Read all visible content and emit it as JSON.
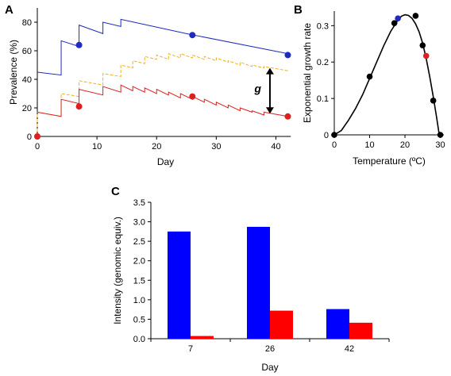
{
  "panels": {
    "a": "A",
    "b": "B",
    "c": "C"
  },
  "colors": {
    "blue": "#1f2bbf",
    "red": "#e02020",
    "orange": "#f0b020",
    "black": "#000000",
    "bar_blue": "#0000ff",
    "bar_red": "#ff0000"
  },
  "chart_data": [
    {
      "id": "A",
      "type": "line",
      "xlabel": "Day",
      "ylabel": "Prevalence (%)",
      "xlim": [
        0,
        43
      ],
      "ylim": [
        0,
        90
      ],
      "xticks": [
        0,
        10,
        20,
        30,
        40
      ],
      "yticks": [
        0,
        20,
        40,
        60,
        80
      ],
      "annotation": "g",
      "annotation_arrow": {
        "x": 39,
        "y_from": 16,
        "y_to": 48
      },
      "series": [
        {
          "color": "blue",
          "style": "solid",
          "points": [
            [
              0,
              45
            ],
            [
              4,
              43
            ],
            [
              4,
              67
            ],
            [
              7,
              63
            ],
            [
              7,
              78
            ],
            [
              11,
              72
            ],
            [
              11,
              80
            ],
            [
              14,
              77
            ],
            [
              14,
              82
            ],
            [
              25,
              72
            ],
            [
              42,
              58
            ]
          ]
        },
        {
          "color": "orange",
          "style": "dashed",
          "points": [
            [
              0,
              17
            ],
            [
              4,
              14
            ],
            [
              4,
              30
            ],
            [
              7,
              28
            ],
            [
              7,
              39
            ],
            [
              11,
              36
            ],
            [
              11,
              44
            ],
            [
              14,
              42
            ],
            [
              14,
              50
            ],
            [
              16,
              48
            ],
            [
              16,
              53
            ],
            [
              18,
              51
            ],
            [
              18,
              56
            ],
            [
              20,
              54
            ],
            [
              20,
              57
            ],
            [
              22,
              54
            ],
            [
              22,
              58
            ],
            [
              24,
              55
            ],
            [
              24,
              58
            ],
            [
              26,
              55
            ],
            [
              26,
              57
            ],
            [
              28,
              54
            ],
            [
              28,
              56
            ],
            [
              30,
              53
            ],
            [
              30,
              55
            ],
            [
              32,
              52
            ],
            [
              32,
              53
            ],
            [
              34,
              50
            ],
            [
              34,
              52
            ],
            [
              36,
              49
            ],
            [
              36,
              50
            ],
            [
              38,
              48
            ],
            [
              38,
              49
            ],
            [
              42,
              46
            ]
          ]
        },
        {
          "color": "red",
          "style": "solid",
          "points": [
            [
              0,
              17
            ],
            [
              4,
              14
            ],
            [
              4,
              26
            ],
            [
              7,
              23
            ],
            [
              7,
              33
            ],
            [
              11,
              29
            ],
            [
              11,
              35
            ],
            [
              14,
              31
            ],
            [
              14,
              36
            ],
            [
              16,
              32
            ],
            [
              16,
              35
            ],
            [
              18,
              31
            ],
            [
              18,
              34
            ],
            [
              20,
              30
            ],
            [
              20,
              33
            ],
            [
              22,
              29
            ],
            [
              22,
              31
            ],
            [
              24,
              27
            ],
            [
              24,
              30
            ],
            [
              26,
              26
            ],
            [
              26,
              28
            ],
            [
              28,
              24
            ],
            [
              28,
              26
            ],
            [
              30,
              22
            ],
            [
              30,
              24
            ],
            [
              32,
              20
            ],
            [
              32,
              22
            ],
            [
              34,
              18
            ],
            [
              34,
              20
            ],
            [
              36,
              17
            ],
            [
              36,
              18
            ],
            [
              38,
              15
            ],
            [
              38,
              17
            ],
            [
              42,
              14
            ]
          ]
        },
        {
          "color": "orange",
          "style": "dashed",
          "points": [
            [
              0,
              0
            ],
            [
              0,
              17
            ]
          ]
        }
      ],
      "markers": [
        {
          "x": 7,
          "y": 64,
          "color": "blue"
        },
        {
          "x": 26,
          "y": 71,
          "color": "blue"
        },
        {
          "x": 42,
          "y": 57,
          "color": "blue"
        },
        {
          "x": 0,
          "y": 0,
          "color": "red"
        },
        {
          "x": 7,
          "y": 21,
          "color": "red"
        },
        {
          "x": 26,
          "y": 28,
          "color": "red"
        },
        {
          "x": 42,
          "y": 14,
          "color": "red"
        }
      ]
    },
    {
      "id": "B",
      "type": "scatter",
      "xlabel": "Temperature (ºC)",
      "ylabel": "Exponential growth rate",
      "xlim": [
        0,
        31
      ],
      "ylim": [
        0,
        0.34
      ],
      "xticks": [
        0,
        10,
        20,
        30
      ],
      "yticks": [
        0,
        0.1,
        0.2,
        0.3
      ],
      "ytick_labels": [
        "0",
        "0.1",
        "0.2",
        "0.3"
      ],
      "curve": [
        [
          0,
          0
        ],
        [
          2,
          0.012
        ],
        [
          4,
          0.04
        ],
        [
          6,
          0.072
        ],
        [
          8,
          0.11
        ],
        [
          10,
          0.155
        ],
        [
          12,
          0.2
        ],
        [
          14,
          0.245
        ],
        [
          16,
          0.285
        ],
        [
          18,
          0.315
        ],
        [
          19,
          0.326
        ],
        [
          20,
          0.33
        ],
        [
          21,
          0.328
        ],
        [
          22,
          0.32
        ],
        [
          23,
          0.305
        ],
        [
          24,
          0.283
        ],
        [
          25,
          0.252
        ],
        [
          26,
          0.21
        ],
        [
          27,
          0.16
        ],
        [
          28,
          0.105
        ],
        [
          29,
          0.045
        ],
        [
          29.7,
          0
        ]
      ],
      "points": [
        {
          "x": 0,
          "y": 0,
          "color": "black"
        },
        {
          "x": 10,
          "y": 0.16,
          "color": "black"
        },
        {
          "x": 17,
          "y": 0.307,
          "color": "black"
        },
        {
          "x": 18,
          "y": 0.32,
          "color": "blue"
        },
        {
          "x": 23,
          "y": 0.327,
          "color": "black"
        },
        {
          "x": 25,
          "y": 0.246,
          "color": "black"
        },
        {
          "x": 26,
          "y": 0.217,
          "color": "red"
        },
        {
          "x": 28,
          "y": 0.094,
          "color": "black"
        },
        {
          "x": 30,
          "y": 0,
          "color": "black"
        }
      ]
    },
    {
      "id": "C",
      "type": "bar",
      "xlabel": "Day",
      "ylabel": "Intensity (genomic equiv.)",
      "categories": [
        "7",
        "26",
        "42"
      ],
      "ylim": [
        0,
        3.5
      ],
      "yticks": [
        "0.0",
        "0.5",
        "1.0",
        "1.5",
        "2.0",
        "2.5",
        "3.0",
        "3.5"
      ],
      "series": [
        {
          "color": "bar_blue",
          "values": [
            2.75,
            2.87,
            0.76
          ]
        },
        {
          "color": "bar_red",
          "values": [
            0.07,
            0.72,
            0.41
          ]
        }
      ]
    }
  ]
}
